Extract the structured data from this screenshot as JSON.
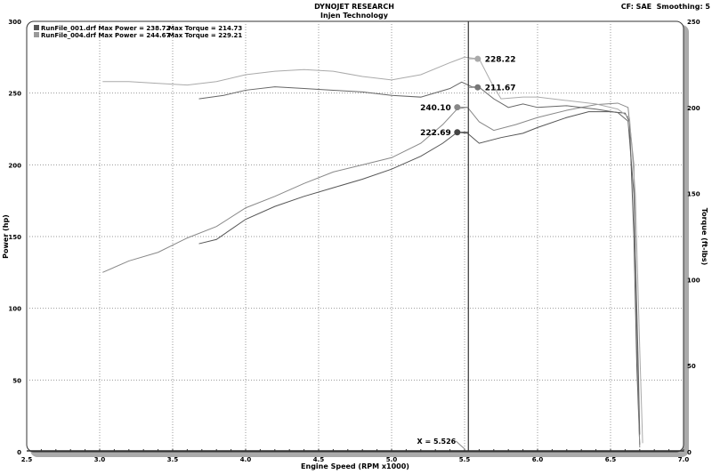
{
  "header": {
    "title": "DYNOJET RESEARCH",
    "subtitle": "Injen Technology",
    "settings": "CF: SAE  Smoothing: 5"
  },
  "chart_data": {
    "type": "line",
    "title": "DYNOJET RESEARCH",
    "subtitle": "Injen Technology",
    "xlabel": "Engine Speed (RPM x1000)",
    "ylabel": "Power (hp)",
    "y2label": "Torque (ft-lbs)",
    "xlim": [
      2.5,
      7.0
    ],
    "ylim": [
      0,
      300
    ],
    "y2lim": [
      0,
      250
    ],
    "xticks": [
      "2.5",
      "3.0",
      "3.5",
      "4.0",
      "4.5",
      "5.0",
      "5.5",
      "6.0",
      "6.5",
      "7.0"
    ],
    "yticks": [
      "0",
      "50",
      "100",
      "150",
      "200",
      "250",
      "300"
    ],
    "y2ticks": [
      "0",
      "50",
      "100",
      "150",
      "200",
      "250"
    ],
    "grid": true,
    "legend": [
      {
        "text": "RunFile_001.drf Max Power = 238.72",
        "torque": "Max Torque = 214.73",
        "color": "#555555"
      },
      {
        "text": "RunFile_004.drf Max Power = 244.67",
        "torque": "Max Torque = 229.21",
        "color": "#999999"
      }
    ],
    "cursor": {
      "x": 5.526,
      "label": "X = 5.526"
    },
    "series": [
      {
        "name": "RunFile_001.drf",
        "quantity": "power",
        "axis": "left",
        "color": "#555555",
        "points": [
          [
            3.68,
            145
          ],
          [
            3.8,
            148
          ],
          [
            4.0,
            162
          ],
          [
            4.2,
            171
          ],
          [
            4.4,
            178
          ],
          [
            4.6,
            184
          ],
          [
            4.8,
            190
          ],
          [
            5.0,
            197
          ],
          [
            5.2,
            206
          ],
          [
            5.35,
            215
          ],
          [
            5.45,
            222.7
          ],
          [
            5.52,
            222
          ],
          [
            5.6,
            215
          ],
          [
            5.75,
            219
          ],
          [
            5.9,
            222
          ],
          [
            6.0,
            226
          ],
          [
            6.2,
            233
          ],
          [
            6.35,
            237
          ],
          [
            6.5,
            237
          ],
          [
            6.6,
            236
          ],
          [
            6.63,
            230
          ],
          [
            6.66,
            150
          ],
          [
            6.68,
            60
          ],
          [
            6.7,
            5
          ]
        ]
      },
      {
        "name": "RunFile_004.drf",
        "quantity": "power",
        "axis": "left",
        "color": "#888888",
        "points": [
          [
            3.02,
            125
          ],
          [
            3.2,
            133
          ],
          [
            3.4,
            139
          ],
          [
            3.6,
            149
          ],
          [
            3.8,
            157
          ],
          [
            4.0,
            170
          ],
          [
            4.2,
            178
          ],
          [
            4.4,
            187
          ],
          [
            4.6,
            195
          ],
          [
            4.8,
            200
          ],
          [
            5.0,
            205
          ],
          [
            5.2,
            215
          ],
          [
            5.35,
            228
          ],
          [
            5.45,
            239
          ],
          [
            5.52,
            240.1
          ],
          [
            5.6,
            230
          ],
          [
            5.7,
            224
          ],
          [
            5.85,
            228
          ],
          [
            6.0,
            233
          ],
          [
            6.2,
            238
          ],
          [
            6.4,
            242
          ],
          [
            6.55,
            243
          ],
          [
            6.62,
            240
          ],
          [
            6.66,
            200
          ],
          [
            6.68,
            80
          ],
          [
            6.7,
            3
          ]
        ]
      },
      {
        "name": "RunFile_001.drf",
        "quantity": "torque",
        "axis": "right",
        "color": "#666666",
        "points": [
          [
            3.68,
            205
          ],
          [
            3.85,
            207
          ],
          [
            4.0,
            210
          ],
          [
            4.2,
            212
          ],
          [
            4.4,
            211
          ],
          [
            4.6,
            210
          ],
          [
            4.8,
            209
          ],
          [
            5.0,
            207
          ],
          [
            5.2,
            206
          ],
          [
            5.4,
            211
          ],
          [
            5.48,
            214.7
          ],
          [
            5.55,
            212
          ],
          [
            5.6,
            211.7
          ],
          [
            5.7,
            205
          ],
          [
            5.8,
            200
          ],
          [
            5.9,
            202
          ],
          [
            6.0,
            200
          ],
          [
            6.2,
            201
          ],
          [
            6.4,
            199
          ],
          [
            6.55,
            197
          ],
          [
            6.62,
            192
          ],
          [
            6.66,
            150
          ],
          [
            6.69,
            50
          ],
          [
            6.7,
            10
          ]
        ]
      },
      {
        "name": "RunFile_004.drf",
        "quantity": "torque",
        "axis": "right",
        "color": "#aaaaaa",
        "points": [
          [
            3.02,
            215
          ],
          [
            3.2,
            215
          ],
          [
            3.4,
            214
          ],
          [
            3.6,
            213
          ],
          [
            3.8,
            215
          ],
          [
            4.0,
            219
          ],
          [
            4.2,
            221
          ],
          [
            4.4,
            222
          ],
          [
            4.6,
            221
          ],
          [
            4.8,
            218
          ],
          [
            5.0,
            216
          ],
          [
            5.2,
            219
          ],
          [
            5.4,
            226
          ],
          [
            5.5,
            229.2
          ],
          [
            5.6,
            228.2
          ],
          [
            5.68,
            215
          ],
          [
            5.75,
            205
          ],
          [
            5.9,
            206
          ],
          [
            6.0,
            206
          ],
          [
            6.2,
            204
          ],
          [
            6.4,
            202
          ],
          [
            6.55,
            199
          ],
          [
            6.63,
            194
          ],
          [
            6.67,
            150
          ],
          [
            6.7,
            60
          ],
          [
            6.72,
            5
          ]
        ]
      }
    ],
    "markers": [
      {
        "label": "228.22",
        "x": 5.59,
        "y": 228.22,
        "axis": "right",
        "color": "#aaaaaa",
        "side": "right"
      },
      {
        "label": "211.67",
        "x": 5.59,
        "y": 211.67,
        "axis": "right",
        "color": "#777777",
        "side": "right"
      },
      {
        "label": "240.10",
        "x": 5.45,
        "y": 240.1,
        "axis": "left",
        "color": "#888888",
        "side": "left"
      },
      {
        "label": "222.69",
        "x": 5.45,
        "y": 222.69,
        "axis": "left",
        "color": "#444444",
        "side": "left"
      }
    ]
  }
}
